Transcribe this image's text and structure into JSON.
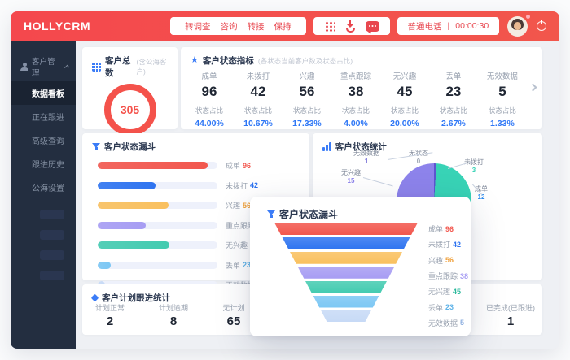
{
  "window": {
    "logo": "HOLLYCRM"
  },
  "header": {
    "call_actions": [
      "转调查",
      "咨询",
      "转接",
      "保持"
    ],
    "icons": [
      "dialpad-icon",
      "hangup-call-icon",
      "chat-icon"
    ],
    "phone_status": {
      "label": "普通电话",
      "divider": "|",
      "timer": "00:00:30"
    }
  },
  "sidebar": {
    "section": {
      "label": "客户管理",
      "icon": "user-icon"
    },
    "items": [
      {
        "label": "数据看板",
        "active": true
      },
      {
        "label": "正在跟进",
        "active": false
      },
      {
        "label": "高级查询",
        "active": false
      },
      {
        "label": "跟进历史",
        "active": false
      },
      {
        "label": "公海设置",
        "active": false
      }
    ]
  },
  "modal": {
    "title": "客户状态漏斗"
  },
  "chart_data": [
    {
      "type": "donut",
      "title": "客户总数",
      "subtitle": "(含公海客户)",
      "value": 305,
      "color": "#f4524b"
    },
    {
      "type": "table",
      "title": "客户状态指标",
      "subtitle": "(各状态当前客户数及状态占比)",
      "ratio_label": "状态占比",
      "categories": [
        "成单",
        "未拨打",
        "兴趣",
        "重点跟踪",
        "无兴趣",
        "丢单",
        "无效数据"
      ],
      "values": [
        96,
        42,
        56,
        38,
        45,
        23,
        5
      ],
      "percents": [
        "44.00%",
        "10.67%",
        "17.33%",
        "4.00%",
        "20.00%",
        "2.67%",
        "1.33%"
      ],
      "percent_color": "#2e77f6"
    },
    {
      "type": "funnel",
      "title": "客户状态漏斗",
      "categories": [
        "成单",
        "未拨打",
        "兴趣",
        "重点跟踪",
        "无兴趣",
        "丢单",
        "无效数据"
      ],
      "values": [
        96,
        42,
        56,
        38,
        45,
        23,
        5
      ],
      "colors": [
        "#f2574e",
        "#2f74f0",
        "#f9c05e",
        "#a79df3",
        "#43cbb0",
        "#7cc7f4",
        "#c7daf6"
      ],
      "value_colors": [
        "#f2574e",
        "#2f74f0",
        "#f0a13c",
        "#a79df3",
        "#2bb99c",
        "#5fb3e8",
        "#8fb0e0"
      ]
    },
    {
      "type": "pie",
      "title": "客户状态统计",
      "slices": [
        {
          "label": "无兴趣",
          "value": 15,
          "color": "#8d83eb"
        },
        {
          "label": "无效数据",
          "value": 1,
          "color": "#5e55cf"
        },
        {
          "label": "无状态",
          "value": 0,
          "color": "#9aa3b0"
        },
        {
          "label": "未拨打",
          "value": 3,
          "color": "#38d3b6"
        },
        {
          "label": "成单",
          "value": 12,
          "color": "#2e8ef0"
        }
      ]
    },
    {
      "type": "table",
      "title": "客户计划跟进统计",
      "categories": [
        "计划正常",
        "计划逾期",
        "无计划",
        "已完成(已跟进)"
      ],
      "values": [
        2,
        8,
        65,
        1
      ]
    }
  ]
}
